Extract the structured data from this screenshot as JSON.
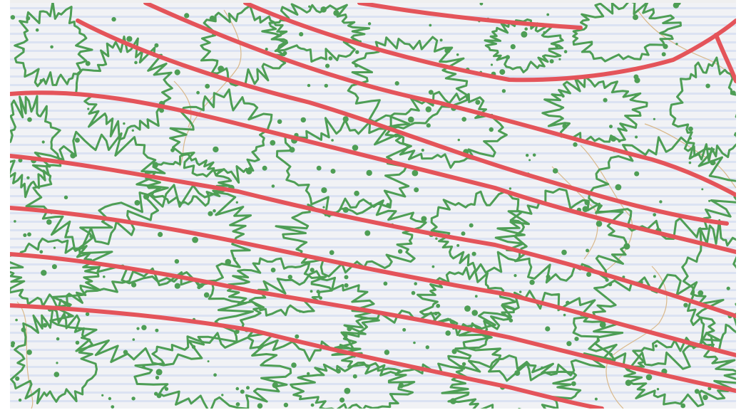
{
  "map": {
    "colors": {
      "background": "#f1f2f5",
      "stripe": "#c8d6ee",
      "vegetation_outline": "#4e9e55",
      "track": "#e4545a",
      "contour": "#d9b88a"
    },
    "layers": [
      "stripes",
      "contour-lines",
      "vegetation-outlines",
      "vegetation-dots",
      "track-lines"
    ]
  }
}
